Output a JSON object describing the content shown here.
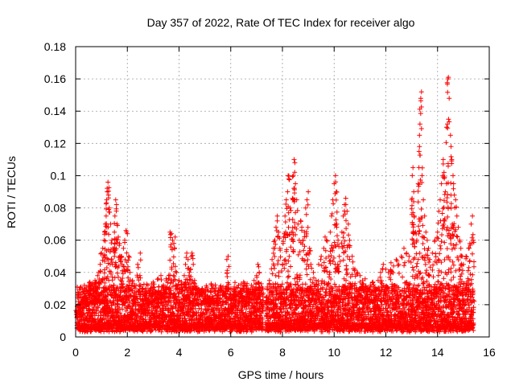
{
  "chart_data": {
    "type": "scatter",
    "title": "Day 357 of 2022, Rate Of TEC Index for receiver algo",
    "xlabel": "GPS time / hours",
    "ylabel": "ROTI / TECUs",
    "xlim": [
      0,
      16
    ],
    "ylim": [
      0,
      0.18
    ],
    "x_ticks": [
      0,
      2,
      4,
      6,
      8,
      10,
      12,
      14,
      16
    ],
    "x_tick_labels": [
      "0",
      "2",
      "4",
      "6",
      "8",
      "10",
      "12",
      "14",
      "16"
    ],
    "y_ticks": [
      0,
      0.02,
      0.04,
      0.06,
      0.08,
      0.1,
      0.12,
      0.14,
      0.16,
      0.18
    ],
    "y_tick_labels": [
      "0",
      "0.02",
      "0.04",
      "0.06",
      "0.08",
      "0.1",
      "0.12",
      "0.14",
      "0.16",
      "0.18"
    ],
    "grid": true,
    "marker": "+",
    "series_color": "#ff0000",
    "series": [
      {
        "name": "ROTI",
        "points": [
          [
            0.05,
            0.012
          ],
          [
            0.1,
            0.018
          ],
          [
            0.15,
            0.02
          ],
          [
            0.2,
            0.015
          ],
          [
            0.25,
            0.022
          ],
          [
            0.3,
            0.028
          ],
          [
            0.35,
            0.03
          ],
          [
            0.4,
            0.025
          ],
          [
            0.45,
            0.02
          ],
          [
            0.5,
            0.032
          ],
          [
            0.55,
            0.034
          ],
          [
            0.6,
            0.03
          ],
          [
            0.65,
            0.033
          ],
          [
            0.7,
            0.03
          ],
          [
            0.75,
            0.035
          ],
          [
            0.8,
            0.034
          ],
          [
            0.85,
            0.038
          ],
          [
            0.9,
            0.04
          ],
          [
            0.95,
            0.045
          ],
          [
            1.0,
            0.052
          ],
          [
            1.05,
            0.055
          ],
          [
            1.1,
            0.06
          ],
          [
            1.12,
            0.065
          ],
          [
            1.15,
            0.07
          ],
          [
            1.18,
            0.075
          ],
          [
            1.2,
            0.085
          ],
          [
            1.22,
            0.09
          ],
          [
            1.25,
            0.096
          ],
          [
            1.27,
            0.088
          ],
          [
            1.3,
            0.08
          ],
          [
            1.35,
            0.07
          ],
          [
            1.4,
            0.06
          ],
          [
            1.45,
            0.055
          ],
          [
            1.5,
            0.065
          ],
          [
            1.52,
            0.075
          ],
          [
            1.55,
            0.085
          ],
          [
            1.58,
            0.082
          ],
          [
            1.6,
            0.07
          ],
          [
            1.65,
            0.062
          ],
          [
            1.7,
            0.058
          ],
          [
            1.75,
            0.05
          ],
          [
            1.8,
            0.045
          ],
          [
            1.85,
            0.055
          ],
          [
            1.9,
            0.06
          ],
          [
            1.95,
            0.066
          ],
          [
            2.0,
            0.064
          ],
          [
            2.05,
            0.05
          ],
          [
            2.1,
            0.04
          ],
          [
            2.2,
            0.035
          ],
          [
            2.3,
            0.03
          ],
          [
            2.4,
            0.045
          ],
          [
            2.5,
            0.052
          ],
          [
            2.6,
            0.03
          ],
          [
            2.7,
            0.028
          ],
          [
            2.8,
            0.032
          ],
          [
            2.9,
            0.03
          ],
          [
            3.0,
            0.034
          ],
          [
            3.1,
            0.028
          ],
          [
            3.2,
            0.036
          ],
          [
            3.3,
            0.038
          ],
          [
            3.4,
            0.032
          ],
          [
            3.5,
            0.036
          ],
          [
            3.6,
            0.038
          ],
          [
            3.65,
            0.065
          ],
          [
            3.7,
            0.064
          ],
          [
            3.75,
            0.06
          ],
          [
            3.8,
            0.058
          ],
          [
            3.85,
            0.062
          ],
          [
            3.9,
            0.04
          ],
          [
            4.0,
            0.035
          ],
          [
            4.1,
            0.034
          ],
          [
            4.2,
            0.038
          ],
          [
            4.25,
            0.045
          ],
          [
            4.3,
            0.052
          ],
          [
            4.35,
            0.048
          ],
          [
            4.4,
            0.04
          ],
          [
            4.45,
            0.042
          ],
          [
            4.5,
            0.052
          ],
          [
            4.55,
            0.045
          ],
          [
            4.6,
            0.035
          ],
          [
            4.7,
            0.03
          ],
          [
            4.8,
            0.028
          ],
          [
            4.9,
            0.03
          ],
          [
            5.0,
            0.025
          ],
          [
            5.1,
            0.022
          ],
          [
            5.2,
            0.025
          ],
          [
            5.3,
            0.03
          ],
          [
            5.4,
            0.028
          ],
          [
            5.5,
            0.026
          ],
          [
            5.6,
            0.03
          ],
          [
            5.7,
            0.028
          ],
          [
            5.8,
            0.03
          ],
          [
            5.85,
            0.048
          ],
          [
            5.9,
            0.05
          ],
          [
            6.0,
            0.03
          ],
          [
            6.1,
            0.026
          ],
          [
            6.2,
            0.028
          ],
          [
            6.3,
            0.032
          ],
          [
            6.4,
            0.03
          ],
          [
            6.5,
            0.034
          ],
          [
            6.6,
            0.03
          ],
          [
            6.7,
            0.028
          ],
          [
            6.8,
            0.032
          ],
          [
            6.9,
            0.035
          ],
          [
            7.0,
            0.038
          ],
          [
            7.05,
            0.045
          ],
          [
            7.1,
            0.04
          ],
          [
            7.15,
            0.03
          ],
          [
            7.2,
            0.02
          ],
          [
            7.4,
            0.025
          ],
          [
            7.5,
            0.035
          ],
          [
            7.6,
            0.048
          ],
          [
            7.65,
            0.055
          ],
          [
            7.7,
            0.06
          ],
          [
            7.75,
            0.068
          ],
          [
            7.8,
            0.075
          ],
          [
            7.85,
            0.065
          ],
          [
            7.9,
            0.055
          ],
          [
            8.0,
            0.045
          ],
          [
            8.05,
            0.062
          ],
          [
            8.1,
            0.075
          ],
          [
            8.15,
            0.085
          ],
          [
            8.2,
            0.09
          ],
          [
            8.22,
            0.1
          ],
          [
            8.25,
            0.098
          ],
          [
            8.3,
            0.08
          ],
          [
            8.35,
            0.065
          ],
          [
            8.4,
            0.085
          ],
          [
            8.42,
            0.1
          ],
          [
            8.45,
            0.11
          ],
          [
            8.48,
            0.108
          ],
          [
            8.5,
            0.095
          ],
          [
            8.55,
            0.085
          ],
          [
            8.6,
            0.07
          ],
          [
            8.65,
            0.06
          ],
          [
            8.7,
            0.072
          ],
          [
            8.75,
            0.068
          ],
          [
            8.8,
            0.06
          ],
          [
            8.85,
            0.065
          ],
          [
            8.9,
            0.08
          ],
          [
            8.95,
            0.085
          ],
          [
            9.0,
            0.09
          ],
          [
            9.05,
            0.055
          ],
          [
            9.1,
            0.045
          ],
          [
            9.2,
            0.04
          ],
          [
            9.3,
            0.035
          ],
          [
            9.4,
            0.045
          ],
          [
            9.5,
            0.05
          ],
          [
            9.6,
            0.055
          ],
          [
            9.65,
            0.062
          ],
          [
            9.7,
            0.06
          ],
          [
            9.8,
            0.05
          ],
          [
            9.85,
            0.065
          ],
          [
            9.9,
            0.075
          ],
          [
            9.95,
            0.085
          ],
          [
            10.0,
            0.095
          ],
          [
            10.05,
            0.1
          ],
          [
            10.08,
            0.09
          ],
          [
            10.1,
            0.07
          ],
          [
            10.15,
            0.06
          ],
          [
            10.2,
            0.05
          ],
          [
            10.3,
            0.065
          ],
          [
            10.35,
            0.075
          ],
          [
            10.4,
            0.082
          ],
          [
            10.45,
            0.086
          ],
          [
            10.5,
            0.078
          ],
          [
            10.55,
            0.07
          ],
          [
            10.6,
            0.06
          ],
          [
            10.7,
            0.05
          ],
          [
            10.8,
            0.042
          ],
          [
            10.9,
            0.04
          ],
          [
            11.0,
            0.038
          ],
          [
            11.1,
            0.035
          ],
          [
            11.2,
            0.036
          ],
          [
            11.3,
            0.03
          ],
          [
            11.4,
            0.032
          ],
          [
            11.5,
            0.034
          ],
          [
            11.6,
            0.03
          ],
          [
            11.7,
            0.035
          ],
          [
            11.8,
            0.04
          ],
          [
            11.9,
            0.045
          ],
          [
            12.0,
            0.042
          ],
          [
            12.1,
            0.04
          ],
          [
            12.2,
            0.046
          ],
          [
            12.3,
            0.044
          ],
          [
            12.4,
            0.048
          ],
          [
            12.5,
            0.045
          ],
          [
            12.6,
            0.05
          ],
          [
            12.7,
            0.055
          ],
          [
            12.8,
            0.052
          ],
          [
            12.9,
            0.05
          ],
          [
            13.0,
            0.085
          ],
          [
            13.02,
            0.1
          ],
          [
            13.05,
            0.105
          ],
          [
            13.08,
            0.09
          ],
          [
            13.1,
            0.075
          ],
          [
            13.15,
            0.065
          ],
          [
            13.2,
            0.06
          ],
          [
            13.25,
            0.095
          ],
          [
            13.28,
            0.105
          ],
          [
            13.3,
            0.125
          ],
          [
            13.32,
            0.132
          ],
          [
            13.35,
            0.148
          ],
          [
            13.38,
            0.152
          ],
          [
            13.4,
            0.1
          ],
          [
            13.45,
            0.085
          ],
          [
            13.5,
            0.075
          ],
          [
            13.55,
            0.065
          ],
          [
            13.6,
            0.06
          ],
          [
            13.65,
            0.055
          ],
          [
            13.7,
            0.048
          ],
          [
            13.8,
            0.052
          ],
          [
            13.9,
            0.06
          ],
          [
            14.0,
            0.065
          ],
          [
            14.05,
            0.078
          ],
          [
            14.1,
            0.085
          ],
          [
            14.15,
            0.095
          ],
          [
            14.2,
            0.1
          ],
          [
            14.22,
            0.11
          ],
          [
            14.25,
            0.102
          ],
          [
            14.3,
            0.09
          ],
          [
            14.35,
            0.13
          ],
          [
            14.38,
            0.132
          ],
          [
            14.4,
            0.16
          ],
          [
            14.42,
            0.161
          ],
          [
            14.45,
            0.148
          ],
          [
            14.5,
            0.125
          ],
          [
            14.52,
            0.118
          ],
          [
            14.55,
            0.11
          ],
          [
            14.6,
            0.1
          ],
          [
            14.62,
            0.095
          ],
          [
            14.65,
            0.088
          ],
          [
            14.7,
            0.085
          ],
          [
            14.75,
            0.075
          ],
          [
            14.8,
            0.068
          ],
          [
            14.85,
            0.06
          ],
          [
            14.9,
            0.055
          ],
          [
            14.95,
            0.05
          ],
          [
            15.0,
            0.045
          ],
          [
            15.1,
            0.05
          ],
          [
            15.2,
            0.055
          ],
          [
            15.25,
            0.058
          ],
          [
            15.3,
            0.07
          ],
          [
            15.35,
            0.075
          ],
          [
            15.38,
            0.06
          ]
        ],
        "baseline_segments": [
          [
            0.05,
            7.25
          ],
          [
            7.35,
            15.4
          ]
        ],
        "baseline_note": "dense band of points between 0.002 and 0.03"
      }
    ]
  }
}
